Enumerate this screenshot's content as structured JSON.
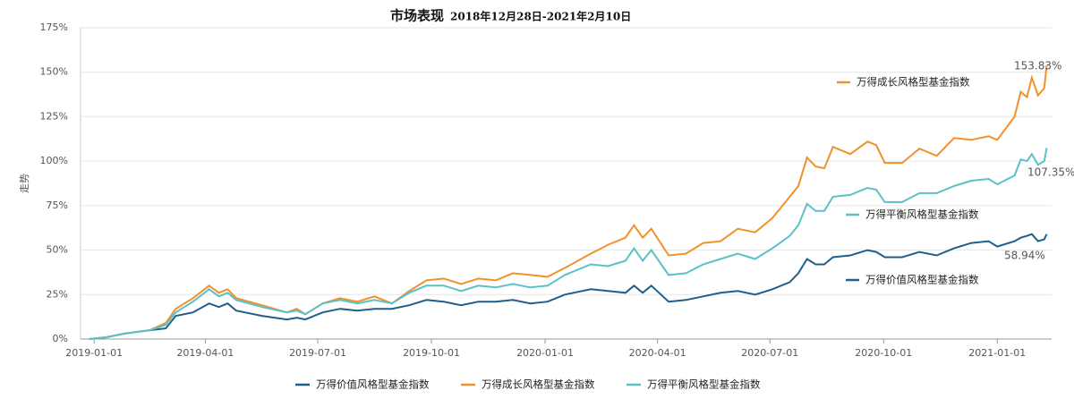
{
  "chart_data": {
    "type": "line",
    "title": "市场表现",
    "subtitle": "2018年12月28日-2021年2月10日",
    "y_label": "走势",
    "x": [
      "2018-12-28",
      "2019-01-11",
      "2019-01-25",
      "2019-02-15",
      "2019-02-28",
      "2019-03-08",
      "2019-03-22",
      "2019-04-04",
      "2019-04-12",
      "2019-04-19",
      "2019-04-26",
      "2019-05-17",
      "2019-06-06",
      "2019-06-14",
      "2019-06-21",
      "2019-07-05",
      "2019-07-19",
      "2019-08-02",
      "2019-08-16",
      "2019-08-30",
      "2019-09-13",
      "2019-09-27",
      "2019-10-11",
      "2019-10-25",
      "2019-11-08",
      "2019-11-22",
      "2019-12-06",
      "2019-12-20",
      "2020-01-03",
      "2020-01-17",
      "2020-02-07",
      "2020-02-21",
      "2020-03-06",
      "2020-03-13",
      "2020-03-20",
      "2020-03-27",
      "2020-04-10",
      "2020-04-24",
      "2020-05-08",
      "2020-05-22",
      "2020-06-05",
      "2020-06-19",
      "2020-07-03",
      "2020-07-17",
      "2020-07-24",
      "2020-07-31",
      "2020-08-07",
      "2020-08-14",
      "2020-08-21",
      "2020-09-04",
      "2020-09-18",
      "2020-09-25",
      "2020-10-02",
      "2020-10-16",
      "2020-10-30",
      "2020-11-13",
      "2020-11-27",
      "2020-12-11",
      "2020-12-25",
      "2021-01-01",
      "2021-01-15",
      "2021-01-20",
      "2021-01-25",
      "2021-01-29",
      "2021-02-03",
      "2021-02-08",
      "2021-02-10"
    ],
    "series": [
      {
        "name": "万得价值风格型基金指数",
        "color": "#1f5f8b",
        "values": [
          0,
          1,
          3,
          5,
          6,
          13,
          15,
          20,
          18,
          20,
          16,
          13,
          11,
          12,
          11,
          15,
          17,
          16,
          17,
          17,
          19,
          22,
          21,
          19,
          21,
          21,
          22,
          20,
          21,
          25,
          28,
          27,
          26,
          30,
          26,
          30,
          21,
          22,
          24,
          26,
          27,
          25,
          28,
          32,
          37,
          45,
          42,
          42,
          46,
          47,
          50,
          49,
          46,
          46,
          49,
          47,
          51,
          54,
          55,
          52,
          55,
          57,
          58,
          59,
          55,
          56,
          58.94
        ],
        "value_labels": [
          null,
          null,
          null,
          null,
          null,
          null,
          null,
          null,
          null,
          null,
          null,
          null,
          null,
          null,
          null,
          null,
          null,
          null,
          null,
          null,
          null,
          null,
          null,
          null,
          null,
          null,
          null,
          null,
          null,
          null,
          null,
          null,
          null,
          null,
          null,
          null,
          null,
          null,
          null,
          null,
          null,
          null,
          null,
          null,
          null,
          null,
          null,
          null,
          null,
          null,
          null,
          null,
          null,
          null,
          null,
          null,
          null,
          null,
          null,
          null,
          null,
          null,
          null,
          null,
          null,
          null,
          "58.94%"
        ]
      },
      {
        "name": "万得成长风格型基金指数",
        "color": "#f0922b",
        "values": [
          0,
          1,
          3,
          5,
          9,
          17,
          23,
          30,
          26,
          28,
          23,
          19,
          15,
          17,
          14,
          20,
          23,
          21,
          24,
          20,
          27,
          33,
          34,
          31,
          34,
          33,
          37,
          36,
          35,
          40,
          48,
          53,
          57,
          64,
          57,
          62,
          47,
          48,
          54,
          55,
          62,
          60,
          68,
          80,
          86,
          102,
          97,
          96,
          108,
          104,
          111,
          109,
          99,
          99,
          107,
          103,
          113,
          112,
          114,
          112,
          125,
          139,
          136,
          147,
          137,
          141,
          153.83
        ],
        "value_labels": [
          null,
          null,
          null,
          null,
          null,
          null,
          null,
          null,
          null,
          null,
          null,
          null,
          null,
          null,
          null,
          null,
          null,
          null,
          null,
          null,
          null,
          null,
          null,
          null,
          null,
          null,
          null,
          null,
          null,
          null,
          null,
          null,
          null,
          null,
          null,
          null,
          null,
          null,
          null,
          null,
          null,
          null,
          null,
          null,
          null,
          null,
          null,
          null,
          null,
          null,
          null,
          null,
          null,
          null,
          null,
          null,
          null,
          null,
          null,
          null,
          null,
          null,
          null,
          null,
          null,
          null,
          "153.83%"
        ]
      },
      {
        "name": "万得平衡风格型基金指数",
        "color": "#5bc0c8",
        "values": [
          0,
          1,
          3,
          5,
          8,
          15,
          21,
          28,
          24,
          26,
          22,
          18,
          15,
          16,
          14,
          20,
          22,
          20,
          22,
          20,
          26,
          30,
          30,
          27,
          30,
          29,
          31,
          29,
          30,
          36,
          42,
          41,
          44,
          51,
          44,
          50,
          36,
          37,
          42,
          45,
          48,
          45,
          51,
          58,
          64,
          76,
          72,
          72,
          80,
          81,
          85,
          84,
          77,
          77,
          82,
          82,
          86,
          89,
          90,
          87,
          92,
          101,
          100,
          104,
          98,
          100,
          107.35
        ],
        "value_labels": [
          null,
          null,
          null,
          null,
          null,
          null,
          null,
          null,
          null,
          null,
          null,
          null,
          null,
          null,
          null,
          null,
          null,
          null,
          null,
          null,
          null,
          null,
          null,
          null,
          null,
          null,
          null,
          null,
          null,
          null,
          null,
          null,
          null,
          null,
          null,
          null,
          null,
          null,
          null,
          null,
          null,
          null,
          null,
          null,
          null,
          null,
          null,
          null,
          null,
          null,
          null,
          null,
          null,
          null,
          null,
          null,
          null,
          null,
          null,
          null,
          null,
          null,
          null,
          null,
          null,
          null,
          "107.35%"
        ]
      }
    ],
    "value_label_color": "#d9262b",
    "xlim": [
      "2018-12-21",
      "2021-02-14"
    ],
    "xticks": [
      "2019-01-01",
      "2019-04-01",
      "2019-07-01",
      "2019-10-01",
      "2020-01-01",
      "2020-04-01",
      "2020-07-01",
      "2020-10-01",
      "2021-01-01"
    ],
    "ylim": [
      0,
      175
    ],
    "yticks": [
      {
        "value": 0,
        "label": "0%"
      },
      {
        "value": 25,
        "label": "25%"
      },
      {
        "value": 50,
        "label": "50%"
      },
      {
        "value": 75,
        "label": "75%"
      },
      {
        "value": 100,
        "label": "100%"
      },
      {
        "value": 125,
        "label": "125%"
      },
      {
        "value": 150,
        "label": "150%"
      },
      {
        "value": 175,
        "label": "175%"
      }
    ],
    "grid": true,
    "legend": "bottom"
  }
}
